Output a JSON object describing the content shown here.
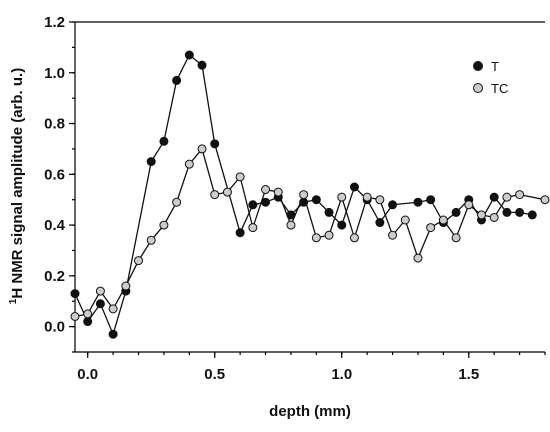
{
  "chart_data": {
    "type": "line",
    "xlabel": "depth (mm)",
    "ylabel_prefix": "1",
    "ylabel_main": "H NMR signal amplitude (arb. u.)",
    "xlim": [
      -0.05,
      1.8
    ],
    "ylim": [
      -0.1,
      1.2
    ],
    "xticks": [
      0.0,
      0.5,
      1.0,
      1.5
    ],
    "xtick_labels": [
      "0.0",
      "0.5",
      "1.0",
      "1.5"
    ],
    "yticks": [
      0.0,
      0.2,
      0.4,
      0.6,
      0.8,
      1.0,
      1.2
    ],
    "ytick_labels": [
      "0.0",
      "0.2",
      "0.4",
      "0.6",
      "0.8",
      "1.0",
      "1.2"
    ],
    "grid": false,
    "legend_position": "top-right",
    "series": [
      {
        "name": "T",
        "color": "#111111",
        "marker_fill": "#111111",
        "x": [
          -0.05,
          0.0,
          0.05,
          0.1,
          0.15,
          0.25,
          0.3,
          0.35,
          0.4,
          0.45,
          0.5,
          0.6,
          0.65,
          0.7,
          0.75,
          0.8,
          0.85,
          0.9,
          0.95,
          1.0,
          1.05,
          1.1,
          1.15,
          1.2,
          1.3,
          1.35,
          1.4,
          1.45,
          1.5,
          1.55,
          1.6,
          1.65,
          1.7,
          1.75
        ],
        "y": [
          0.13,
          0.02,
          0.09,
          -0.03,
          0.14,
          0.65,
          0.73,
          0.97,
          1.07,
          1.03,
          0.72,
          0.37,
          0.48,
          0.49,
          0.51,
          0.44,
          0.49,
          0.5,
          0.45,
          0.4,
          0.55,
          0.5,
          0.41,
          0.48,
          0.49,
          0.5,
          0.41,
          0.45,
          0.5,
          0.42,
          0.51,
          0.45,
          0.45,
          0.44
        ]
      },
      {
        "name": "TC",
        "color": "#111111",
        "marker_fill": "#cccccc",
        "x": [
          -0.05,
          0.0,
          0.05,
          0.1,
          0.15,
          0.2,
          0.25,
          0.3,
          0.35,
          0.4,
          0.45,
          0.5,
          0.55,
          0.6,
          0.65,
          0.7,
          0.75,
          0.8,
          0.85,
          0.9,
          0.95,
          1.0,
          1.05,
          1.1,
          1.15,
          1.2,
          1.25,
          1.3,
          1.35,
          1.4,
          1.45,
          1.5,
          1.55,
          1.6,
          1.65,
          1.7,
          1.8
        ],
        "y": [
          0.04,
          0.05,
          0.14,
          0.07,
          0.16,
          0.26,
          0.34,
          0.4,
          0.49,
          0.64,
          0.7,
          0.52,
          0.53,
          0.59,
          0.39,
          0.54,
          0.53,
          0.4,
          0.52,
          0.35,
          0.36,
          0.51,
          0.35,
          0.51,
          0.5,
          0.36,
          0.42,
          0.27,
          0.39,
          0.42,
          0.35,
          0.48,
          0.44,
          0.43,
          0.51,
          0.52,
          0.5
        ]
      }
    ]
  }
}
